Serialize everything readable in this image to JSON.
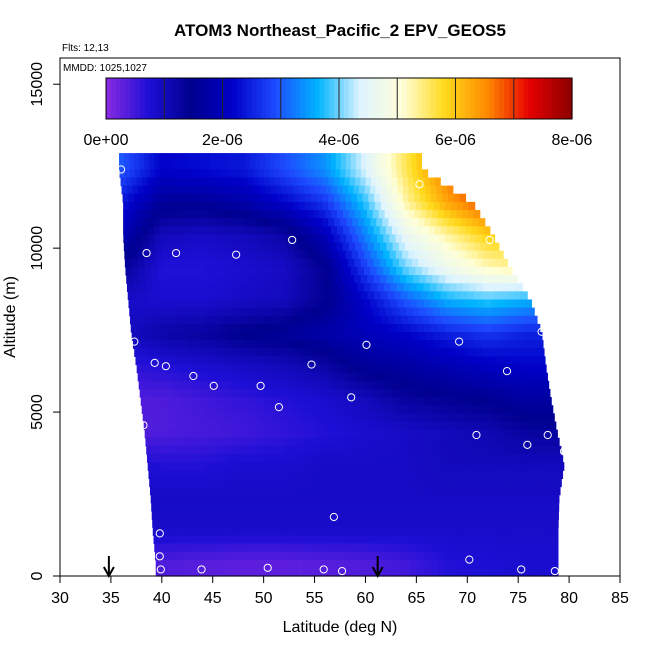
{
  "chart_data": {
    "type": "heatmap",
    "title": "ATOM3 Northeast_Pacific_2 EPV_GEOS5",
    "flights_label": "Flts: 12,13",
    "mmdd_label": "MMDD: 1025,1027",
    "xlabel": "Latitude (deg N)",
    "ylabel": "Altitude (m)",
    "xlim": [
      30,
      85
    ],
    "ylim": [
      0,
      15800
    ],
    "x_ticks": [
      "30",
      "35",
      "40",
      "45",
      "50",
      "55",
      "60",
      "65",
      "70",
      "75",
      "80",
      "85"
    ],
    "y_ticks": [
      "0",
      "5000",
      "10000",
      "15000"
    ],
    "colorbar": {
      "range": [
        0,
        8e-06
      ],
      "tick_labels": [
        "0e+00",
        "2e-06",
        "4e-06",
        "6e-06",
        "8e-06"
      ],
      "colors": [
        "#8a2be2",
        "#1e0fd6",
        "#00008f",
        "#0000c8",
        "#1e4bff",
        "#00b4ff",
        "#dff4ff",
        "#ffffd8",
        "#ffd91a",
        "#ff8a00",
        "#e60000",
        "#8b0000"
      ]
    },
    "curtain": {
      "altitudes": [
        12400,
        11400,
        10400,
        9400,
        8400,
        7400,
        6400,
        5400,
        4400,
        3400,
        2400,
        1400,
        400
      ],
      "left_edge": [
        35.8,
        36.2,
        36.2,
        36.4,
        36.7,
        37.0,
        37.5,
        37.9,
        38.3,
        38.6,
        38.9,
        39.1,
        39.4
      ],
      "right_edge": [
        65.5,
        70.5,
        72.5,
        74.2,
        76.2,
        77.3,
        77.7,
        78.2,
        78.8,
        79.5,
        79.0,
        78.9,
        78.9
      ],
      "cols": [
        36,
        40,
        44,
        48,
        52,
        56,
        60,
        64,
        68,
        72,
        76,
        80
      ],
      "epv": [
        [
          3e-06,
          2.2e-06,
          2.3e-06,
          2.4e-06,
          2.9e-06,
          3.4e-06,
          4.4e-06,
          5.6e-06,
          6.7e-06,
          7.6e-06,
          7.6e-06,
          7.6e-06
        ],
        [
          2.4e-06,
          1.6e-06,
          1.6e-06,
          1.8e-06,
          2.2e-06,
          2.7e-06,
          3.8e-06,
          5.3e-06,
          6.3e-06,
          7e-06,
          7.6e-06,
          7.6e-06
        ],
        [
          2e-06,
          1e-06,
          9e-07,
          1e-06,
          1.2e-06,
          2e-06,
          3.3e-06,
          4.6e-06,
          5.3e-06,
          5.9e-06,
          6.1e-06,
          6.1e-06
        ],
        [
          1.4e-06,
          7e-07,
          7e-07,
          8e-07,
          9e-07,
          1.4e-06,
          2.8e-06,
          4e-06,
          4.7e-06,
          5.2e-06,
          5.4e-06,
          5.4e-06
        ],
        [
          9e-07,
          8e-07,
          8e-07,
          9e-07,
          1e-06,
          1.4e-06,
          2.2e-06,
          3e-06,
          3.6e-06,
          3.8e-06,
          3.6e-06,
          3.6e-06
        ],
        [
          9e-07,
          1.2e-06,
          1.3e-06,
          1.5e-06,
          1.6e-06,
          1.8e-06,
          2e-06,
          2.2e-06,
          2.5e-06,
          2.7e-06,
          2.5e-06,
          2.5e-06
        ],
        [
          6e-07,
          7e-07,
          8e-07,
          9e-07,
          1e-06,
          1.2e-06,
          1.6e-06,
          1.7e-06,
          1.9e-06,
          2.1e-06,
          2.2e-06,
          2.2e-06
        ],
        [
          4e-07,
          4e-07,
          5e-07,
          6e-07,
          7e-07,
          8e-07,
          1e-06,
          1.3e-06,
          1.4e-06,
          1.5e-06,
          1.7e-06,
          1.7e-06
        ],
        [
          3.5e-07,
          4e-07,
          4.5e-07,
          5e-07,
          6e-07,
          7e-07,
          8e-07,
          9e-07,
          1e-06,
          1.1e-06,
          1.3e-06,
          1.3e-06
        ],
        [
          8e-07,
          7e-07,
          7e-07,
          8e-07,
          8e-07,
          9e-07,
          9e-07,
          9e-07,
          1e-06,
          1e-06,
          1e-06,
          1e-06
        ],
        [
          9e-07,
          9e-07,
          9e-07,
          9e-07,
          9e-07,
          9e-07,
          9e-07,
          9e-07,
          9e-07,
          9e-07,
          9e-07,
          9e-07
        ],
        [
          9e-07,
          8.5e-07,
          8.5e-07,
          8.5e-07,
          8.5e-07,
          8.5e-07,
          8.5e-07,
          8.5e-07,
          8.5e-07,
          8.5e-07,
          8.5e-07,
          8.5e-07
        ],
        [
          3.5e-07,
          4e-07,
          3.5e-07,
          3e-07,
          3e-07,
          3.5e-07,
          4e-07,
          5e-07,
          7e-07,
          7.5e-07,
          8e-07,
          8e-07
        ]
      ]
    },
    "sample_points": [
      {
        "lat": 36.0,
        "alt": 12400
      },
      {
        "lat": 65.3,
        "alt": 11950
      },
      {
        "lat": 72.2,
        "alt": 10250
      },
      {
        "lat": 52.8,
        "alt": 10250
      },
      {
        "lat": 38.5,
        "alt": 9850
      },
      {
        "lat": 41.4,
        "alt": 9850
      },
      {
        "lat": 47.3,
        "alt": 9800
      },
      {
        "lat": 77.3,
        "alt": 7450
      },
      {
        "lat": 37.3,
        "alt": 7150
      },
      {
        "lat": 60.1,
        "alt": 7050
      },
      {
        "lat": 69.2,
        "alt": 7150
      },
      {
        "lat": 39.3,
        "alt": 6500
      },
      {
        "lat": 40.4,
        "alt": 6400
      },
      {
        "lat": 54.7,
        "alt": 6450
      },
      {
        "lat": 73.9,
        "alt": 6250
      },
      {
        "lat": 43.1,
        "alt": 6100
      },
      {
        "lat": 45.1,
        "alt": 5800
      },
      {
        "lat": 49.7,
        "alt": 5800
      },
      {
        "lat": 58.6,
        "alt": 5450
      },
      {
        "lat": 51.5,
        "alt": 5150
      },
      {
        "lat": 38.2,
        "alt": 4600
      },
      {
        "lat": 70.9,
        "alt": 4300
      },
      {
        "lat": 77.9,
        "alt": 4300
      },
      {
        "lat": 75.9,
        "alt": 4000
      },
      {
        "lat": 79.5,
        "alt": 3800
      },
      {
        "lat": 56.9,
        "alt": 1800
      },
      {
        "lat": 39.8,
        "alt": 1300
      },
      {
        "lat": 39.8,
        "alt": 600
      },
      {
        "lat": 70.2,
        "alt": 500
      },
      {
        "lat": 39.9,
        "alt": 200
      },
      {
        "lat": 43.9,
        "alt": 200
      },
      {
        "lat": 50.4,
        "alt": 250
      },
      {
        "lat": 55.9,
        "alt": 200
      },
      {
        "lat": 57.7,
        "alt": 150
      },
      {
        "lat": 75.3,
        "alt": 200
      },
      {
        "lat": 78.6,
        "alt": 150
      }
    ],
    "arrows_lat": [
      34.8,
      61.2
    ],
    "grid": false,
    "legend_position": "top-inside"
  }
}
